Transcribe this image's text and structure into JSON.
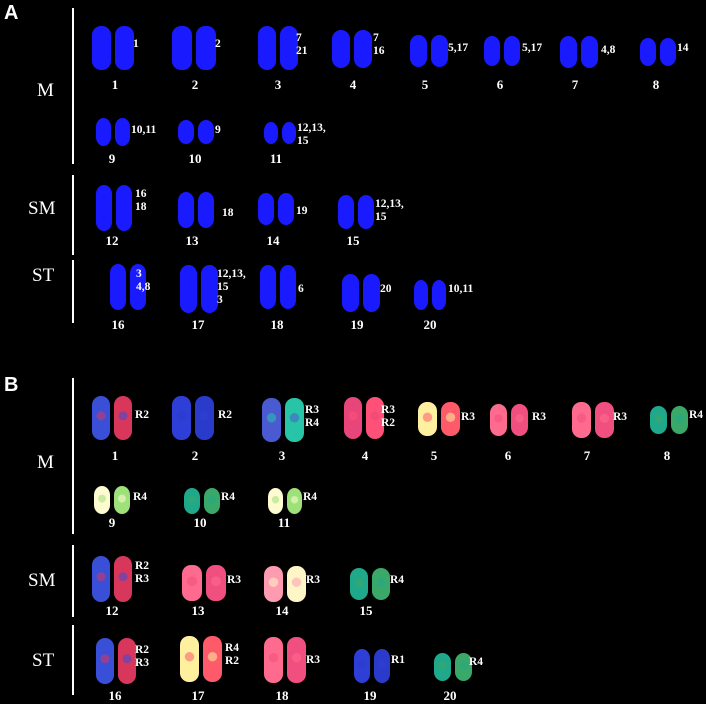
{
  "panel_a": {
    "label": "A",
    "groups": [
      "M",
      "SM",
      "ST"
    ],
    "chromosomes": [
      {
        "n": "1",
        "ann": "1"
      },
      {
        "n": "2",
        "ann": "2"
      },
      {
        "n": "3",
        "ann": "7\n21"
      },
      {
        "n": "4",
        "ann": "7\n16"
      },
      {
        "n": "5",
        "ann": "5,17"
      },
      {
        "n": "6",
        "ann": "5,17"
      },
      {
        "n": "7",
        "ann": "4,8"
      },
      {
        "n": "8",
        "ann": "14"
      },
      {
        "n": "9",
        "ann": "10,11"
      },
      {
        "n": "10",
        "ann": "9"
      },
      {
        "n": "11",
        "ann": "12,13,\n15"
      },
      {
        "n": "12",
        "ann": "16\n18"
      },
      {
        "n": "13",
        "ann": "18"
      },
      {
        "n": "14",
        "ann": "19"
      },
      {
        "n": "15",
        "ann": "12,13,\n15"
      },
      {
        "n": "16",
        "ann": "3\n4,8"
      },
      {
        "n": "17",
        "ann": "12,13,\n15\n3"
      },
      {
        "n": "18",
        "ann": "6"
      },
      {
        "n": "19",
        "ann": "20"
      },
      {
        "n": "20",
        "ann": "10,11"
      }
    ]
  },
  "panel_b": {
    "label": "B",
    "groups": [
      "M",
      "SM",
      "ST"
    ],
    "chromosomes": [
      {
        "n": "1",
        "ann": "R2",
        "tone": "blue-red"
      },
      {
        "n": "2",
        "ann": "R2",
        "tone": "blue"
      },
      {
        "n": "3",
        "ann": "R3\nR4",
        "tone": "mixed"
      },
      {
        "n": "4",
        "ann": "R3\nR2",
        "tone": "red"
      },
      {
        "n": "5",
        "ann": "R3",
        "tone": "yellow-red"
      },
      {
        "n": "6",
        "ann": "R3",
        "tone": "pink"
      },
      {
        "n": "7",
        "ann": "R3",
        "tone": "pink"
      },
      {
        "n": "8",
        "ann": "R4",
        "tone": "green"
      },
      {
        "n": "9",
        "ann": "R4",
        "tone": "yellow-green"
      },
      {
        "n": "10",
        "ann": "R4",
        "tone": "green"
      },
      {
        "n": "11",
        "ann": "R4",
        "tone": "yellow-green"
      },
      {
        "n": "12",
        "ann": "R2\nR3",
        "tone": "blue-red"
      },
      {
        "n": "13",
        "ann": "R3",
        "tone": "pink"
      },
      {
        "n": "14",
        "ann": "R3",
        "tone": "pink-yellow"
      },
      {
        "n": "15",
        "ann": "R4",
        "tone": "green"
      },
      {
        "n": "16",
        "ann": "R2\nR3",
        "tone": "blue-red"
      },
      {
        "n": "17",
        "ann": "R4\nR2",
        "tone": "yellow-red"
      },
      {
        "n": "18",
        "ann": "R3",
        "tone": "pink"
      },
      {
        "n": "19",
        "ann": "R1",
        "tone": "blue"
      },
      {
        "n": "20",
        "ann": "R4",
        "tone": "green"
      }
    ]
  },
  "colors": {
    "background": "#000000",
    "dapi_blue": "#1a1aff",
    "text": "#ffffff"
  }
}
